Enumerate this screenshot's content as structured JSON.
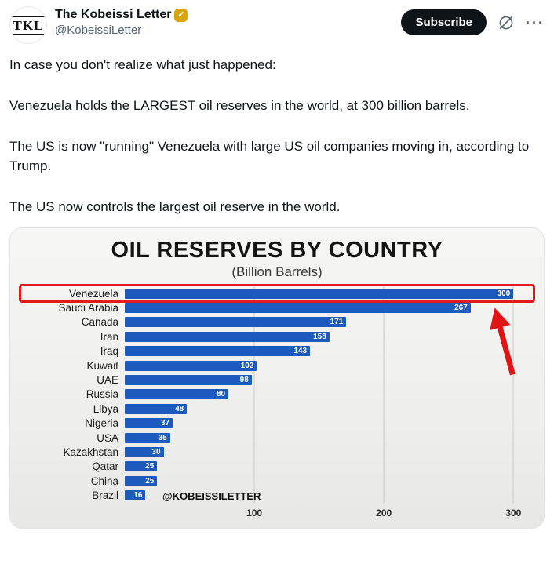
{
  "header": {
    "display_name": "The Kobeissi Letter",
    "handle": "@KobeissiLetter",
    "avatar_text": "TKL",
    "verified_badge": "gold-check",
    "subscribe_label": "Subscribe",
    "more_glyph": "···"
  },
  "tweet": {
    "paragraphs": [
      "In case you don't realize what just happened:",
      "Venezuela holds the LARGEST oil reserves in the world, at 300 billion barrels.",
      "The US is now \"running\" Venezuela with large US oil companies moving in, according to Trump.",
      "The US now controls the largest oil reserve in the world."
    ]
  },
  "chart_data": {
    "type": "bar",
    "orientation": "horizontal",
    "title": "OIL RESERVES BY COUNTRY",
    "subtitle": "(Billion Barrels)",
    "categories": [
      "Venezuela",
      "Saudi Arabia",
      "Canada",
      "Iran",
      "Iraq",
      "Kuwait",
      "UAE",
      "Russia",
      "Libya",
      "Nigeria",
      "USA",
      "Kazakhstan",
      "Qatar",
      "China",
      "Brazil"
    ],
    "values": [
      300,
      267,
      171,
      158,
      143,
      102,
      98,
      80,
      48,
      37,
      35,
      30,
      25,
      25,
      16
    ],
    "xlim": [
      0,
      315
    ],
    "xticks": [
      100,
      200,
      300
    ],
    "grid": true,
    "legend": false,
    "bar_color": "#1d5abe",
    "highlight": {
      "index": 0,
      "color": "#df1b1b"
    },
    "annotation": "red-arrow-pointing-at-venezuela",
    "watermark": "@KOBEISSILETTER"
  }
}
